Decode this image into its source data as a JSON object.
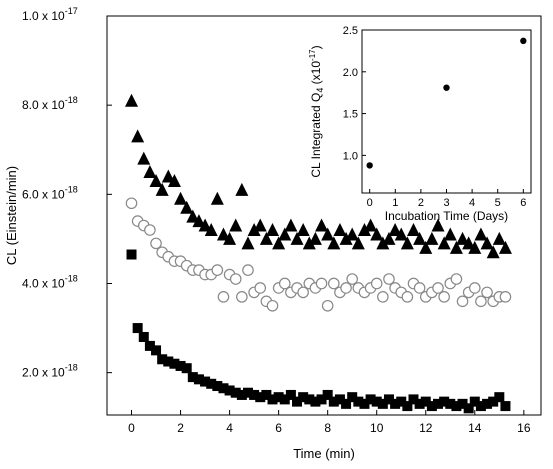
{
  "chart_data": [
    {
      "type": "scatter",
      "title": "",
      "xlabel": "Time (min)",
      "ylabel": "CL (Einstein/min)",
      "xlim": [
        -1,
        16.7
      ],
      "ylim": [
        1.05e-18,
        1e-17
      ],
      "x_ticks": [
        0,
        2,
        4,
        6,
        8,
        10,
        12,
        14,
        16
      ],
      "x_tick_labels": [
        "0",
        "2",
        "4",
        "6",
        "8",
        "10",
        "12",
        "14",
        "16"
      ],
      "y_ticks": [
        2e-18,
        4e-18,
        6e-18,
        8e-18,
        1e-17
      ],
      "y_tick_labels": [
        {
          "mantissa": "2.0 x 10",
          "exp": "-18"
        },
        {
          "mantissa": "4.0 x 10",
          "exp": "-18"
        },
        {
          "mantissa": "6.0 x 10",
          "exp": "-18"
        },
        {
          "mantissa": "8.0 x 10",
          "exp": "-18"
        },
        {
          "mantissa": "1.0 x 10",
          "exp": "-17"
        }
      ],
      "grid": false,
      "legend": false,
      "series": [
        {
          "marker": "filled-triangle",
          "color": "#000000",
          "x": [
            0.0,
            0.25,
            0.5,
            0.75,
            1.0,
            1.25,
            1.5,
            1.75,
            2.0,
            2.25,
            2.5,
            2.75,
            3.0,
            3.25,
            3.5,
            3.75,
            4.0,
            4.25,
            4.5,
            4.75,
            5.0,
            5.25,
            5.5,
            5.75,
            6.0,
            6.25,
            6.5,
            6.75,
            7.0,
            7.25,
            7.5,
            7.75,
            8.0,
            8.25,
            8.5,
            8.75,
            9.0,
            9.25,
            9.5,
            9.75,
            10.0,
            10.25,
            10.5,
            10.75,
            11.0,
            11.25,
            11.5,
            11.75,
            12.0,
            12.25,
            12.5,
            12.75,
            13.0,
            13.25,
            13.5,
            13.75,
            14.0,
            14.25,
            14.5,
            14.75,
            15.0,
            15.25
          ],
          "y": [
            8.1e-18,
            7.3e-18,
            6.8e-18,
            6.5e-18,
            6.3e-18,
            6.1e-18,
            6.4e-18,
            6.3e-18,
            5.9e-18,
            5.7e-18,
            5.5e-18,
            5.4e-18,
            5.3e-18,
            5.2e-18,
            5.9e-18,
            5.1e-18,
            5e-18,
            5.3e-18,
            6.1e-18,
            4.9e-18,
            5.2e-18,
            5.3e-18,
            5e-18,
            5.2e-18,
            4.9e-18,
            5.1e-18,
            5.3e-18,
            5e-18,
            5.2e-18,
            4.9e-18,
            5e-18,
            5.3e-18,
            5.1e-18,
            4.9e-18,
            5.2e-18,
            5e-18,
            5.1e-18,
            4.9e-18,
            5.2e-18,
            5.3e-18,
            5.1e-18,
            4.9e-18,
            5e-18,
            5.2e-18,
            5.1e-18,
            4.9e-18,
            5.2e-18,
            5e-18,
            4.8e-18,
            5e-18,
            5.3e-18,
            4.9e-18,
            5.1e-18,
            4.8e-18,
            5e-18,
            4.9e-18,
            4.8e-18,
            5.1e-18,
            4.9e-18,
            4.7e-18,
            5e-18,
            4.8e-18
          ]
        },
        {
          "marker": "open-circle",
          "color": "#888888",
          "x": [
            0.0,
            0.25,
            0.5,
            0.75,
            1.0,
            1.25,
            1.5,
            1.75,
            2.0,
            2.25,
            2.5,
            2.75,
            3.0,
            3.25,
            3.5,
            3.75,
            4.0,
            4.25,
            4.5,
            4.75,
            5.0,
            5.25,
            5.5,
            5.75,
            6.0,
            6.25,
            6.5,
            6.75,
            7.0,
            7.25,
            7.5,
            7.75,
            8.0,
            8.25,
            8.5,
            8.75,
            9.0,
            9.25,
            9.5,
            9.75,
            10.0,
            10.25,
            10.5,
            10.75,
            11.0,
            11.25,
            11.5,
            11.75,
            12.0,
            12.25,
            12.5,
            12.75,
            13.0,
            13.25,
            13.5,
            13.75,
            14.0,
            14.25,
            14.5,
            14.75,
            15.0,
            15.25
          ],
          "y": [
            5.8e-18,
            5.4e-18,
            5.3e-18,
            5.2e-18,
            4.9e-18,
            4.7e-18,
            4.6e-18,
            4.5e-18,
            4.5e-18,
            4.4e-18,
            4.3e-18,
            4.3e-18,
            4.2e-18,
            4.2e-18,
            4.3e-18,
            3.7e-18,
            4.2e-18,
            4.1e-18,
            3.7e-18,
            4.3e-18,
            3.8e-18,
            3.9e-18,
            3.6e-18,
            3.5e-18,
            3.9e-18,
            4e-18,
            3.8e-18,
            3.9e-18,
            3.8e-18,
            4e-18,
            3.9e-18,
            4e-18,
            3.5e-18,
            4e-18,
            3.8e-18,
            3.9e-18,
            4.1e-18,
            3.9e-18,
            3.8e-18,
            3.9e-18,
            4e-18,
            3.7e-18,
            4.1e-18,
            3.9e-18,
            3.8e-18,
            3.7e-18,
            4e-18,
            3.9e-18,
            3.7e-18,
            3.8e-18,
            3.9e-18,
            3.7e-18,
            4e-18,
            4.1e-18,
            3.6e-18,
            3.8e-18,
            3.9e-18,
            3.6e-18,
            3.8e-18,
            3.6e-18,
            3.7e-18,
            3.7e-18
          ]
        },
        {
          "marker": "filled-square",
          "color": "#000000",
          "x": [
            0.0,
            0.25,
            0.5,
            0.75,
            1.0,
            1.25,
            1.5,
            1.75,
            2.0,
            2.25,
            2.5,
            2.75,
            3.0,
            3.25,
            3.5,
            3.75,
            4.0,
            4.25,
            4.5,
            4.75,
            5.0,
            5.25,
            5.5,
            5.75,
            6.0,
            6.25,
            6.5,
            6.75,
            7.0,
            7.25,
            7.5,
            7.75,
            8.0,
            8.25,
            8.5,
            8.75,
            9.0,
            9.25,
            9.5,
            9.75,
            10.0,
            10.25,
            10.5,
            10.75,
            11.0,
            11.25,
            11.5,
            11.75,
            12.0,
            12.25,
            12.5,
            12.75,
            13.0,
            13.25,
            13.5,
            13.75,
            14.0,
            14.25,
            14.5,
            14.75,
            15.0,
            15.25
          ],
          "y": [
            4.65e-18,
            3e-18,
            2.8e-18,
            2.6e-18,
            2.5e-18,
            2.3e-18,
            2.25e-18,
            2.2e-18,
            2.15e-18,
            2.1e-18,
            1.9e-18,
            1.85e-18,
            1.8e-18,
            1.75e-18,
            1.7e-18,
            1.65e-18,
            1.6e-18,
            1.55e-18,
            1.5e-18,
            1.55e-18,
            1.5e-18,
            1.45e-18,
            1.5e-18,
            1.4e-18,
            1.45e-18,
            1.4e-18,
            1.5e-18,
            1.35e-18,
            1.45e-18,
            1.4e-18,
            1.35e-18,
            1.4e-18,
            1.5e-18,
            1.35e-18,
            1.4e-18,
            1.3e-18,
            1.45e-18,
            1.35e-18,
            1.3e-18,
            1.4e-18,
            1.35e-18,
            1.3e-18,
            1.4e-18,
            1.3e-18,
            1.35e-18,
            1.25e-18,
            1.4e-18,
            1.3e-18,
            1.35e-18,
            1.25e-18,
            1.3e-18,
            1.35e-18,
            1.3e-18,
            1.25e-18,
            1.3e-18,
            1.2e-18,
            1.35e-18,
            1.25e-18,
            1.3e-18,
            1.35e-18,
            1.45e-18,
            1.25e-18
          ]
        }
      ]
    },
    {
      "type": "scatter",
      "title": "",
      "xlabel": "Incubation Time (Days)",
      "ylabel": {
        "text": "CL Integrated Q",
        "subscript": "4",
        "suffix": " (x10",
        "exp": "-17",
        "close": ")"
      },
      "xlim": [
        -0.3,
        6.3
      ],
      "ylim": [
        0.55,
        2.5
      ],
      "x_ticks": [
        0,
        1,
        2,
        3,
        4,
        5,
        6
      ],
      "x_tick_labels": [
        "0",
        "1",
        "2",
        "3",
        "4",
        "5",
        "6"
      ],
      "y_ticks": [
        1.0,
        1.5,
        2.0,
        2.5
      ],
      "y_tick_labels": [
        "1.0",
        "1.5",
        "2.0",
        "2.5"
      ],
      "grid": false,
      "legend": false,
      "series": [
        {
          "marker": "filled-circle",
          "color": "#000000",
          "x": [
            0,
            3,
            6
          ],
          "y": [
            0.88,
            1.81,
            2.37
          ]
        }
      ]
    }
  ]
}
